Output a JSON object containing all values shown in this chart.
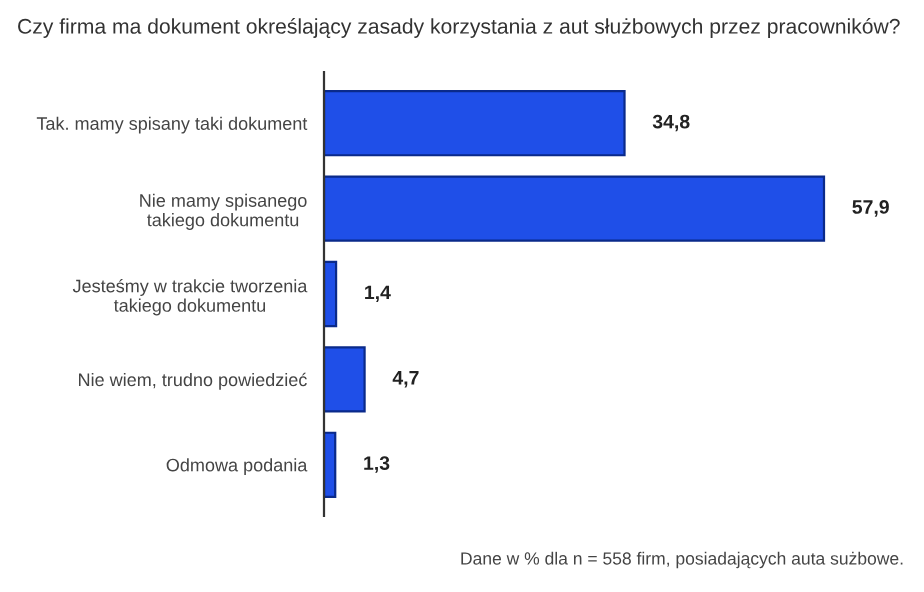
{
  "chart_data": {
    "type": "bar",
    "orientation": "horizontal",
    "title": "Czy firma ma dokument określający zasady korzystania z aut służbowych przez pracowników?",
    "categories": [
      "Tak. mamy spisany taki dokument",
      "Nie mamy spisanego\ntakiego dokumentu",
      "Jesteśmy w trakcie tworzenia\ntakiego dokumentu",
      "Nie wiem, trudno powiedzieć",
      "Odmowa podania"
    ],
    "values": [
      34.8,
      57.9,
      1.4,
      4.7,
      1.3
    ],
    "value_labels": [
      "34,8",
      "57,9",
      "1,4",
      "4,7",
      "1,3"
    ],
    "color": "#1f4fe8",
    "annotations": [
      "Dane w % dla n = 558 firm, posiadających auta sużbowe."
    ]
  }
}
